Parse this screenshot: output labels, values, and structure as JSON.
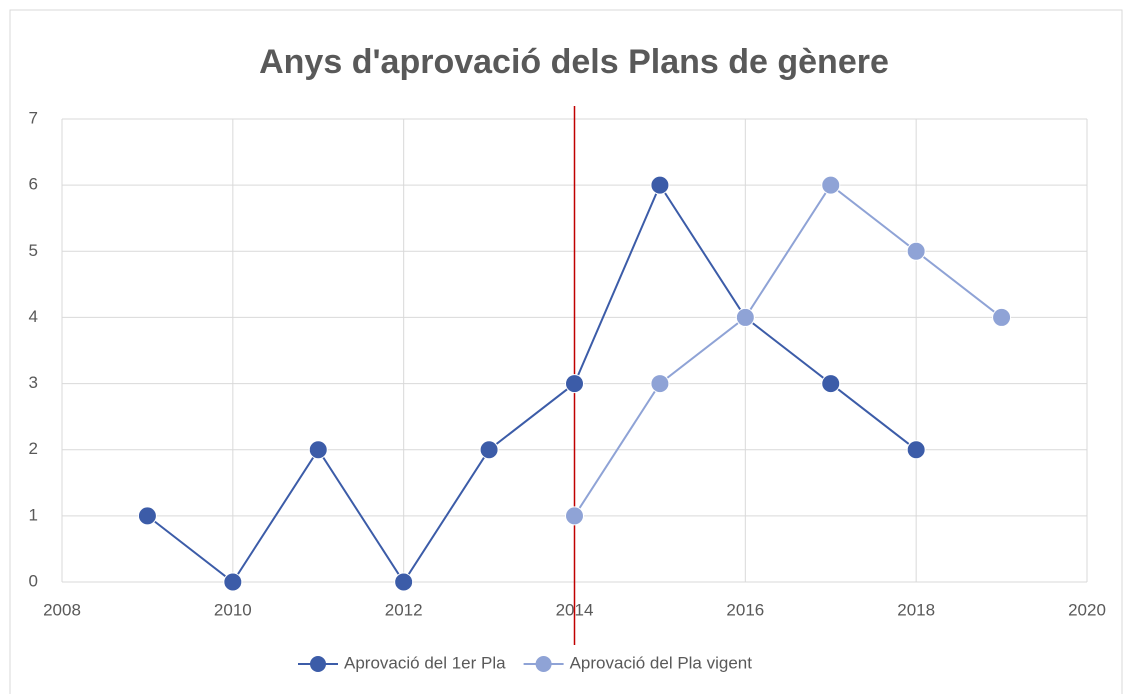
{
  "chart_data": {
    "type": "line",
    "title": "Anys d'aprovació dels Plans de gènere",
    "series": [
      {
        "name": "Aprovació del 1er Pla",
        "color": "#3c5ca8",
        "x": [
          2009,
          2010,
          2011,
          2012,
          2013,
          2014,
          2015,
          2016,
          2017,
          2018
        ],
        "values": [
          1,
          0,
          2,
          0,
          2,
          3,
          6,
          4,
          3,
          2
        ]
      },
      {
        "name": "Aprovació del Pla vigent",
        "color": "#8fa3d6",
        "x": [
          2014,
          2015,
          2016,
          2017,
          2018,
          2019
        ],
        "values": [
          1,
          3,
          4,
          6,
          5,
          4
        ]
      }
    ],
    "reference_line": {
      "x": 2014,
      "color": "#c00000"
    },
    "xlim": [
      2008,
      2020
    ],
    "xticks": [
      2008,
      2010,
      2012,
      2014,
      2016,
      2018,
      2020
    ],
    "ylim": [
      0,
      7
    ],
    "yticks": [
      0,
      1,
      2,
      3,
      4,
      5,
      6,
      7
    ],
    "grid": true,
    "legend": "bottom"
  }
}
